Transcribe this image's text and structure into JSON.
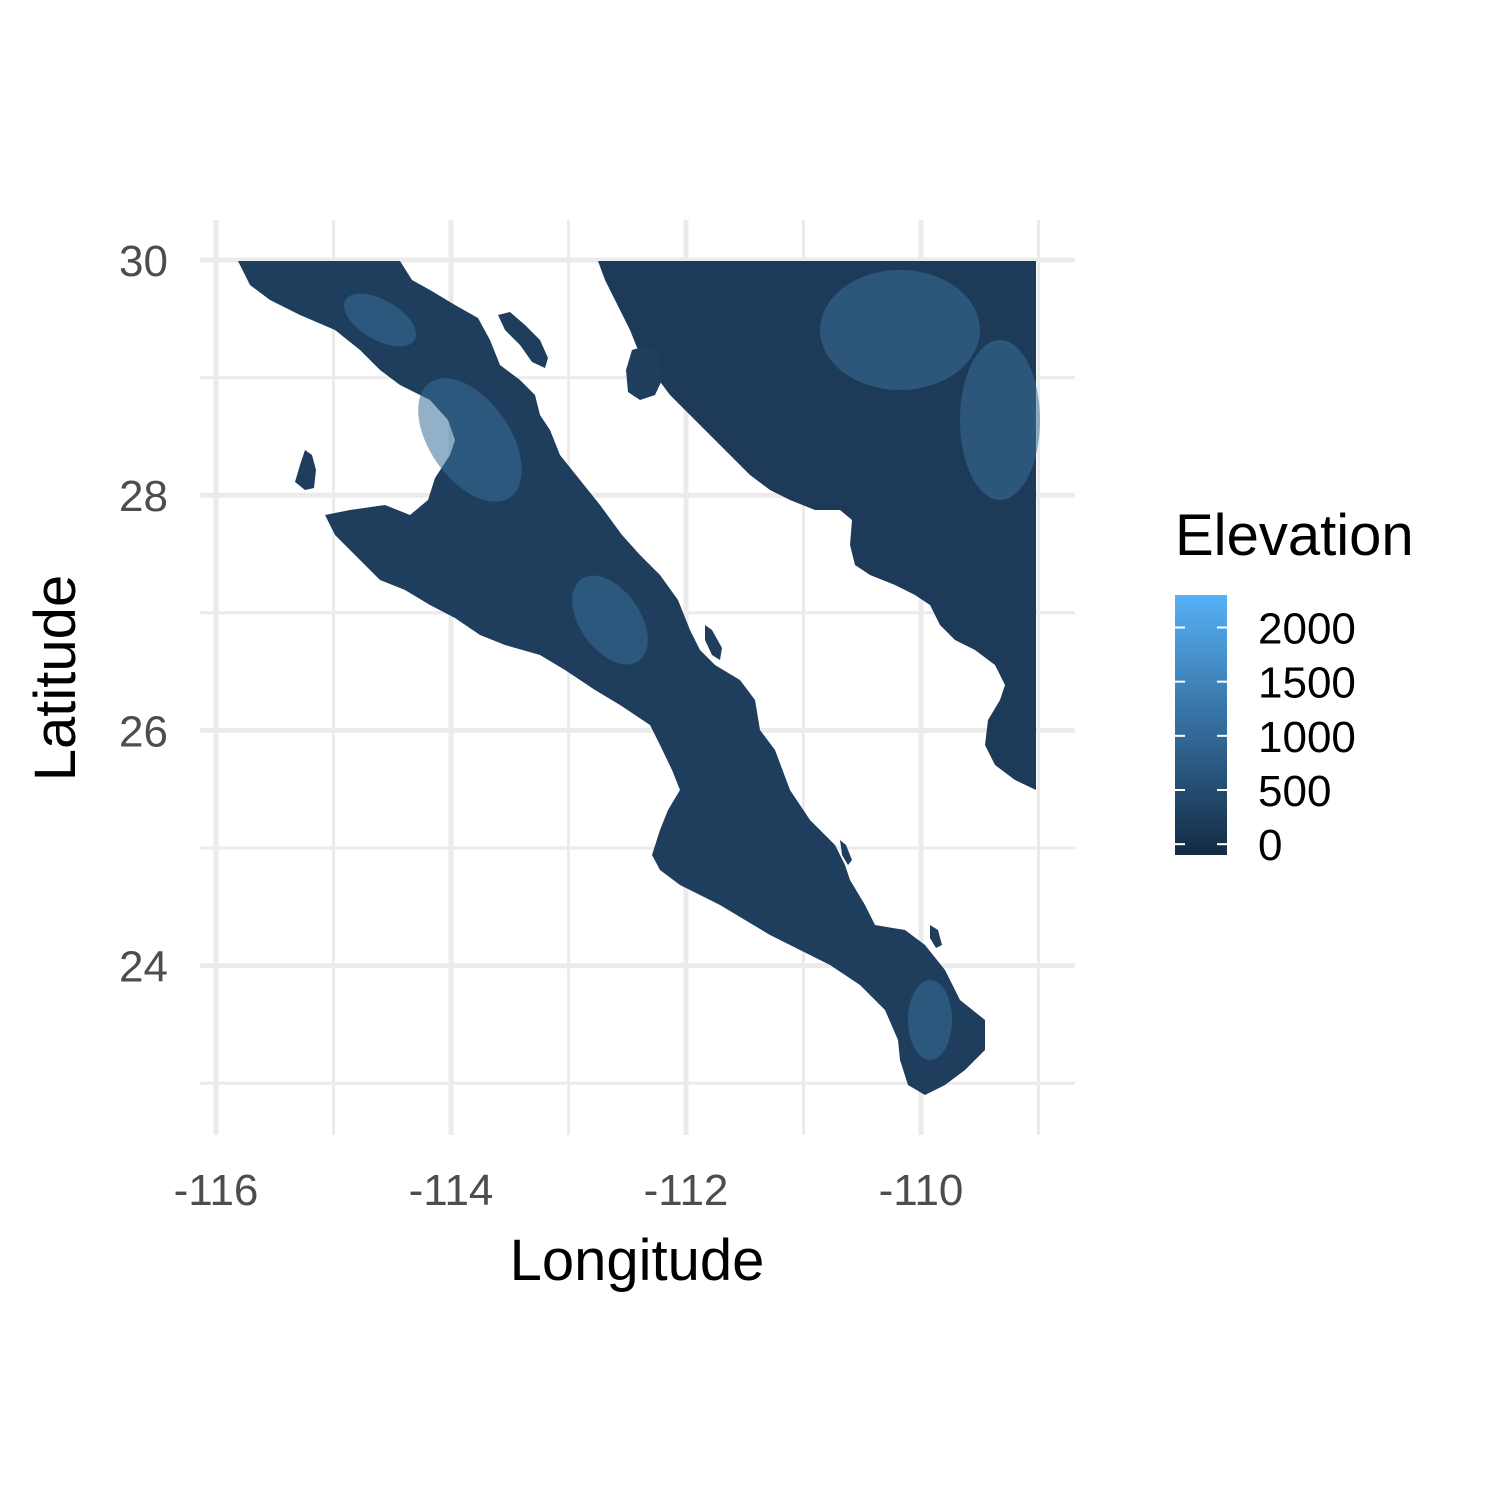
{
  "chart_data": {
    "type": "raster-map",
    "title": "",
    "xlabel": "Longitude",
    "ylabel": "Latitude",
    "xlim": [
      -116,
      -108.9
    ],
    "ylim": [
      22.7,
      30.3
    ],
    "x_ticks": [
      -116,
      -114,
      -112,
      -110
    ],
    "x_tick_labels": [
      "-116",
      "-114",
      "-112",
      "-110"
    ],
    "y_ticks": [
      24,
      26,
      28,
      30
    ],
    "y_tick_labels": [
      "24",
      "26",
      "28",
      "30"
    ],
    "grid": true,
    "legend": {
      "title": "Elevation",
      "placement": "right",
      "min": -100,
      "max": 2300,
      "breaks": [
        0,
        500,
        1000,
        1500,
        2000
      ],
      "labels": [
        "0",
        "500",
        "1000",
        "1500",
        "2000"
      ],
      "color_low": "#132B43",
      "color_high": "#56B1F7"
    }
  }
}
